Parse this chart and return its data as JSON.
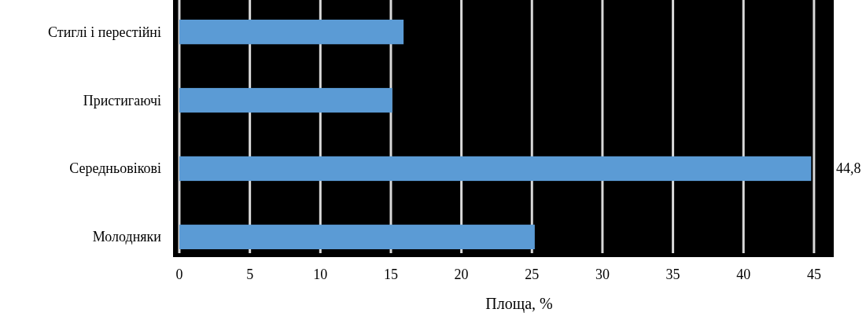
{
  "chart_data": {
    "type": "bar",
    "orientation": "horizontal",
    "xlabel": "Площа, %",
    "categories": [
      "Стиглі і перестійні",
      "Пристигаючі",
      "Середньовікові",
      "Молодняки"
    ],
    "values": [
      15.9,
      15.1,
      44.8,
      25.2
    ],
    "value_labels": [
      null,
      null,
      "44,8",
      null
    ],
    "color": "#5b9bd5",
    "xlim": [
      0,
      46.4
    ],
    "xticks": [
      0,
      5,
      10,
      15,
      20,
      25,
      30,
      35,
      40,
      45
    ],
    "grid": "x"
  }
}
